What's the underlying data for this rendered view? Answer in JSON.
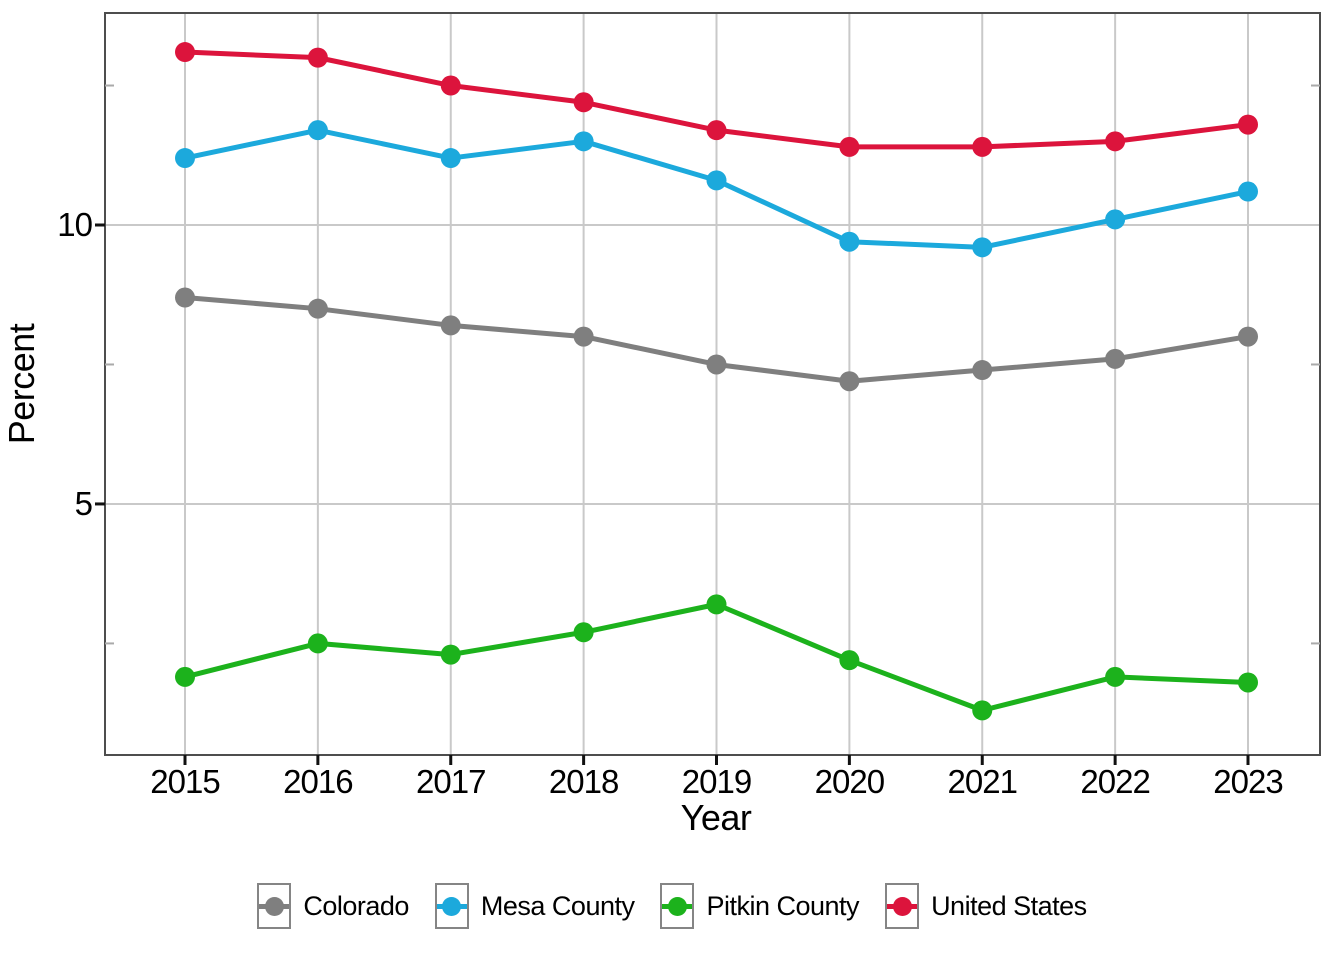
{
  "figure": {
    "background": "#ffffff",
    "panel_border_color": "#4d4d4d",
    "gridline_color": "#c9c9c9",
    "minor_tick_color": "#aaaaaa",
    "major_tick_color": "#111111"
  },
  "chart_data": {
    "type": "line",
    "x": [
      2015,
      2016,
      2017,
      2018,
      2019,
      2020,
      2021,
      2022,
      2023
    ],
    "series": [
      {
        "name": "Colorado",
        "color": "#7f7f7f",
        "values": [
          8.7,
          8.5,
          8.2,
          8.0,
          7.5,
          7.2,
          7.4,
          7.6,
          8.0
        ]
      },
      {
        "name": "Mesa County",
        "color": "#1ca9dc",
        "values": [
          11.2,
          11.7,
          11.2,
          11.5,
          10.8,
          9.7,
          9.6,
          10.1,
          10.6
        ]
      },
      {
        "name": "Pitkin County",
        "color": "#1cb21c",
        "values": [
          1.9,
          2.5,
          2.3,
          2.7,
          3.2,
          2.2,
          1.3,
          1.9,
          1.8
        ]
      },
      {
        "name": "United States",
        "color": "#dc143c",
        "values": [
          13.1,
          13.0,
          12.5,
          12.2,
          11.7,
          11.4,
          11.4,
          11.5,
          11.8
        ]
      }
    ],
    "title": "",
    "xlabel": "Year",
    "ylabel": "Percent",
    "ylim": [
      0.5,
      13.8
    ],
    "yticks": {
      "major": [
        {
          "value": 10,
          "label": "10"
        },
        {
          "value": 5,
          "label": "5"
        }
      ],
      "minor": [
        12.5,
        7.5,
        2.5
      ]
    },
    "grid": "major horizontal lines at 5 and 10, vertical line at each year",
    "legend_position": "bottom",
    "marker": "filled circle on line"
  }
}
